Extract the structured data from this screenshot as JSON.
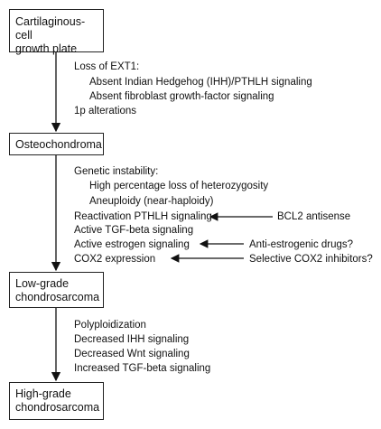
{
  "boxes": {
    "b1": [
      "Cartilaginous-cell",
      "growth plate"
    ],
    "b2": [
      "Osteochondroma"
    ],
    "b3": [
      "Low-grade",
      "chondrosarcoma"
    ],
    "b4": [
      "High-grade",
      "chondrosarcoma"
    ]
  },
  "section1": [
    "Loss of EXT1:",
    "Absent Indian Hedgehog (IHH)/PTHLH signaling",
    "Absent fibroblast growth-factor signaling",
    "1p alterations"
  ],
  "section2": [
    "Genetic instability:",
    "High percentage loss of heterozygosity",
    "Aneuploidy (near-haploidy)",
    "Reactivation PTHLH signaling",
    "Active TGF-beta signaling",
    "Active estrogen signaling",
    "COX2 expression"
  ],
  "therapies": [
    "BCL2 antisense",
    "Anti-estrogenic drugs?",
    "Selective COX2 inhibitors?"
  ],
  "section3": [
    "Polyploidization",
    "Decreased IHH signaling",
    "Decreased Wnt signaling",
    "Increased TGF-beta signaling"
  ]
}
